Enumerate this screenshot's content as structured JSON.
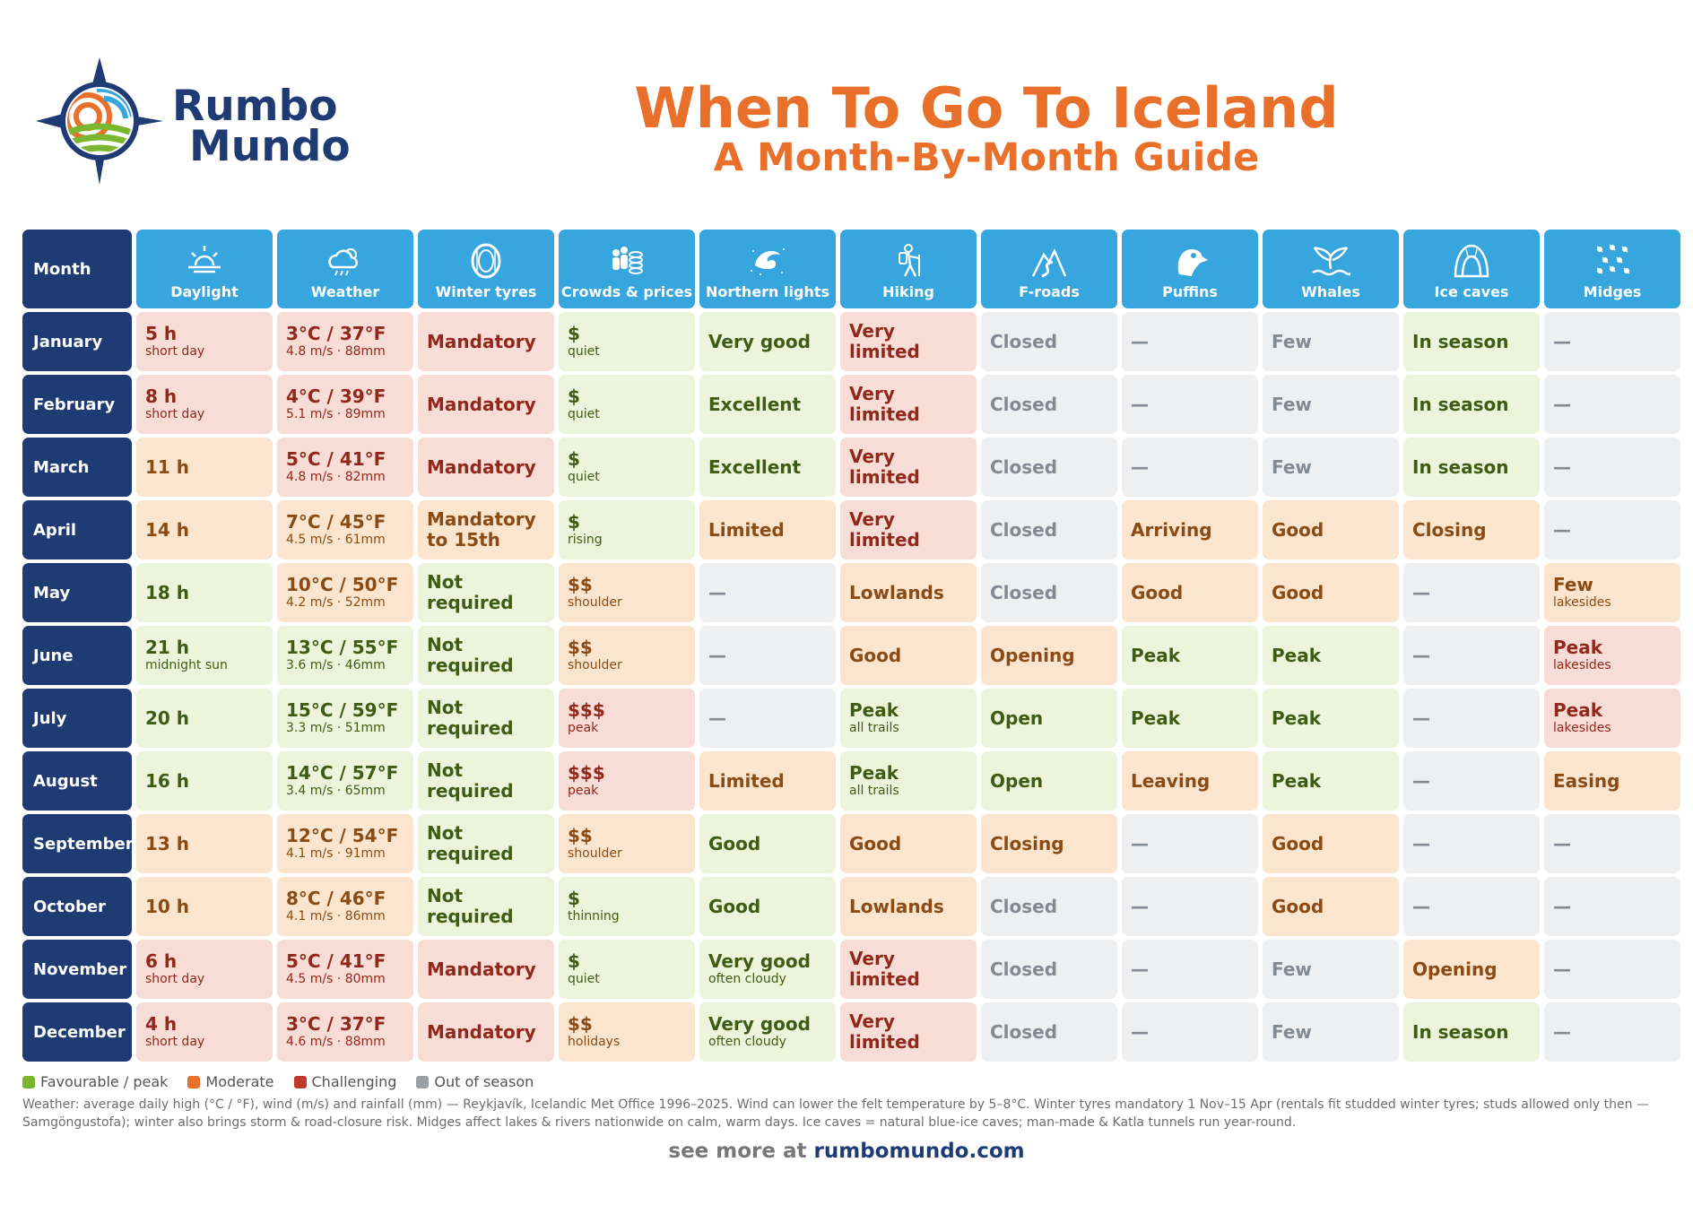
{
  "brand": {
    "line1": "Rumbo",
    "line2": "Mundo"
  },
  "title": {
    "line1": "When To Go To Iceland",
    "line2": "A Month-By-Month Guide"
  },
  "colors": {
    "favourable": "#7ab72f",
    "moderate": "#e8702a",
    "challenging": "#c0392b",
    "out": "#9aa0a6",
    "navy": "#1f3b73",
    "header_blue": "#37a6df"
  },
  "table": {
    "month_header": "Month",
    "columns": [
      {
        "label": "Daylight",
        "icon": "sunrise-icon"
      },
      {
        "label": "Weather",
        "icon": "rain-cloud-icon"
      },
      {
        "label": "Winter tyres",
        "icon": "tyre-icon"
      },
      {
        "label": "Crowds & prices",
        "icon": "crowd-coins-icon"
      },
      {
        "label": "Northern lights",
        "icon": "aurora-icon"
      },
      {
        "label": "Hiking",
        "icon": "hiker-icon"
      },
      {
        "label": "F-roads",
        "icon": "mountain-road-icon"
      },
      {
        "label": "Puffins",
        "icon": "puffin-icon"
      },
      {
        "label": "Whales",
        "icon": "whale-tail-icon"
      },
      {
        "label": "Ice caves",
        "icon": "ice-cave-icon"
      },
      {
        "label": "Midges",
        "icon": "midges-icon"
      }
    ],
    "rows": [
      {
        "month": "January",
        "cells": [
          {
            "main": "5 h",
            "sub": "short day",
            "status": "c"
          },
          {
            "main": "3°C / 37°F",
            "sub": "4.8 m/s · 88mm",
            "status": "c"
          },
          {
            "main": "Mandatory",
            "sub": "",
            "status": "c"
          },
          {
            "main": "$",
            "sub": "quiet",
            "status": "g"
          },
          {
            "main": "Very good",
            "sub": "",
            "status": "g"
          },
          {
            "main": "Very limited",
            "sub": "",
            "status": "c"
          },
          {
            "main": "Closed",
            "sub": "",
            "status": "o"
          },
          {
            "main": "—",
            "sub": "",
            "status": "o"
          },
          {
            "main": "Few",
            "sub": "",
            "status": "o"
          },
          {
            "main": "In season",
            "sub": "",
            "status": "g"
          },
          {
            "main": "—",
            "sub": "",
            "status": "o"
          }
        ]
      },
      {
        "month": "February",
        "cells": [
          {
            "main": "8 h",
            "sub": "short day",
            "status": "c"
          },
          {
            "main": "4°C / 39°F",
            "sub": "5.1 m/s · 89mm",
            "status": "c"
          },
          {
            "main": "Mandatory",
            "sub": "",
            "status": "c"
          },
          {
            "main": "$",
            "sub": "quiet",
            "status": "g"
          },
          {
            "main": "Excellent",
            "sub": "",
            "status": "g"
          },
          {
            "main": "Very limited",
            "sub": "",
            "status": "c"
          },
          {
            "main": "Closed",
            "sub": "",
            "status": "o"
          },
          {
            "main": "—",
            "sub": "",
            "status": "o"
          },
          {
            "main": "Few",
            "sub": "",
            "status": "o"
          },
          {
            "main": "In season",
            "sub": "",
            "status": "g"
          },
          {
            "main": "—",
            "sub": "",
            "status": "o"
          }
        ]
      },
      {
        "month": "March",
        "cells": [
          {
            "main": "11 h",
            "sub": "",
            "status": "m"
          },
          {
            "main": "5°C / 41°F",
            "sub": "4.8 m/s · 82mm",
            "status": "c"
          },
          {
            "main": "Mandatory",
            "sub": "",
            "status": "c"
          },
          {
            "main": "$",
            "sub": "quiet",
            "status": "g"
          },
          {
            "main": "Excellent",
            "sub": "",
            "status": "g"
          },
          {
            "main": "Very limited",
            "sub": "",
            "status": "c"
          },
          {
            "main": "Closed",
            "sub": "",
            "status": "o"
          },
          {
            "main": "—",
            "sub": "",
            "status": "o"
          },
          {
            "main": "Few",
            "sub": "",
            "status": "o"
          },
          {
            "main": "In season",
            "sub": "",
            "status": "g"
          },
          {
            "main": "—",
            "sub": "",
            "status": "o"
          }
        ]
      },
      {
        "month": "April",
        "cells": [
          {
            "main": "14 h",
            "sub": "",
            "status": "m"
          },
          {
            "main": "7°C / 45°F",
            "sub": "4.5 m/s · 61mm",
            "status": "m"
          },
          {
            "main": "Mandatory to 15th",
            "sub": "",
            "status": "m"
          },
          {
            "main": "$",
            "sub": "rising",
            "status": "g"
          },
          {
            "main": "Limited",
            "sub": "",
            "status": "m"
          },
          {
            "main": "Very limited",
            "sub": "",
            "status": "c"
          },
          {
            "main": "Closed",
            "sub": "",
            "status": "o"
          },
          {
            "main": "Arriving",
            "sub": "",
            "status": "m"
          },
          {
            "main": "Good",
            "sub": "",
            "status": "m"
          },
          {
            "main": "Closing",
            "sub": "",
            "status": "m"
          },
          {
            "main": "—",
            "sub": "",
            "status": "o"
          }
        ]
      },
      {
        "month": "May",
        "cells": [
          {
            "main": "18 h",
            "sub": "",
            "status": "g"
          },
          {
            "main": "10°C / 50°F",
            "sub": "4.2 m/s · 52mm",
            "status": "m"
          },
          {
            "main": "Not required",
            "sub": "",
            "status": "g"
          },
          {
            "main": "$$",
            "sub": "shoulder",
            "status": "m"
          },
          {
            "main": "—",
            "sub": "",
            "status": "o"
          },
          {
            "main": "Lowlands",
            "sub": "",
            "status": "m"
          },
          {
            "main": "Closed",
            "sub": "",
            "status": "o"
          },
          {
            "main": "Good",
            "sub": "",
            "status": "m"
          },
          {
            "main": "Good",
            "sub": "",
            "status": "m"
          },
          {
            "main": "—",
            "sub": "",
            "status": "o"
          },
          {
            "main": "Few",
            "sub": "lakesides",
            "status": "m"
          }
        ]
      },
      {
        "month": "June",
        "cells": [
          {
            "main": "21 h",
            "sub": "midnight sun",
            "status": "g"
          },
          {
            "main": "13°C / 55°F",
            "sub": "3.6 m/s · 46mm",
            "status": "g"
          },
          {
            "main": "Not required",
            "sub": "",
            "status": "g"
          },
          {
            "main": "$$",
            "sub": "shoulder",
            "status": "m"
          },
          {
            "main": "—",
            "sub": "",
            "status": "o"
          },
          {
            "main": "Good",
            "sub": "",
            "status": "m"
          },
          {
            "main": "Opening",
            "sub": "",
            "status": "m"
          },
          {
            "main": "Peak",
            "sub": "",
            "status": "g"
          },
          {
            "main": "Peak",
            "sub": "",
            "status": "g"
          },
          {
            "main": "—",
            "sub": "",
            "status": "o"
          },
          {
            "main": "Peak",
            "sub": "lakesides",
            "status": "c"
          }
        ]
      },
      {
        "month": "July",
        "cells": [
          {
            "main": "20 h",
            "sub": "",
            "status": "g"
          },
          {
            "main": "15°C / 59°F",
            "sub": "3.3 m/s · 51mm",
            "status": "g"
          },
          {
            "main": "Not required",
            "sub": "",
            "status": "g"
          },
          {
            "main": "$$$",
            "sub": "peak",
            "status": "c"
          },
          {
            "main": "—",
            "sub": "",
            "status": "o"
          },
          {
            "main": "Peak",
            "sub": "all trails",
            "status": "g"
          },
          {
            "main": "Open",
            "sub": "",
            "status": "g"
          },
          {
            "main": "Peak",
            "sub": "",
            "status": "g"
          },
          {
            "main": "Peak",
            "sub": "",
            "status": "g"
          },
          {
            "main": "—",
            "sub": "",
            "status": "o"
          },
          {
            "main": "Peak",
            "sub": "lakesides",
            "status": "c"
          }
        ]
      },
      {
        "month": "August",
        "cells": [
          {
            "main": "16 h",
            "sub": "",
            "status": "g"
          },
          {
            "main": "14°C / 57°F",
            "sub": "3.4 m/s · 65mm",
            "status": "g"
          },
          {
            "main": "Not required",
            "sub": "",
            "status": "g"
          },
          {
            "main": "$$$",
            "sub": "peak",
            "status": "c"
          },
          {
            "main": "Limited",
            "sub": "",
            "status": "m"
          },
          {
            "main": "Peak",
            "sub": "all trails",
            "status": "g"
          },
          {
            "main": "Open",
            "sub": "",
            "status": "g"
          },
          {
            "main": "Leaving",
            "sub": "",
            "status": "m"
          },
          {
            "main": "Peak",
            "sub": "",
            "status": "g"
          },
          {
            "main": "—",
            "sub": "",
            "status": "o"
          },
          {
            "main": "Easing",
            "sub": "",
            "status": "m"
          }
        ]
      },
      {
        "month": "September",
        "cells": [
          {
            "main": "13 h",
            "sub": "",
            "status": "m"
          },
          {
            "main": "12°C / 54°F",
            "sub": "4.1 m/s · 91mm",
            "status": "m"
          },
          {
            "main": "Not required",
            "sub": "",
            "status": "g"
          },
          {
            "main": "$$",
            "sub": "shoulder",
            "status": "m"
          },
          {
            "main": "Good",
            "sub": "",
            "status": "g"
          },
          {
            "main": "Good",
            "sub": "",
            "status": "m"
          },
          {
            "main": "Closing",
            "sub": "",
            "status": "m"
          },
          {
            "main": "—",
            "sub": "",
            "status": "o"
          },
          {
            "main": "Good",
            "sub": "",
            "status": "m"
          },
          {
            "main": "—",
            "sub": "",
            "status": "o"
          },
          {
            "main": "—",
            "sub": "",
            "status": "o"
          }
        ]
      },
      {
        "month": "October",
        "cells": [
          {
            "main": "10 h",
            "sub": "",
            "status": "m"
          },
          {
            "main": "8°C / 46°F",
            "sub": "4.1 m/s · 86mm",
            "status": "m"
          },
          {
            "main": "Not required",
            "sub": "",
            "status": "g"
          },
          {
            "main": "$",
            "sub": "thinning",
            "status": "g"
          },
          {
            "main": "Good",
            "sub": "",
            "status": "g"
          },
          {
            "main": "Lowlands",
            "sub": "",
            "status": "m"
          },
          {
            "main": "Closed",
            "sub": "",
            "status": "o"
          },
          {
            "main": "—",
            "sub": "",
            "status": "o"
          },
          {
            "main": "Good",
            "sub": "",
            "status": "m"
          },
          {
            "main": "—",
            "sub": "",
            "status": "o"
          },
          {
            "main": "—",
            "sub": "",
            "status": "o"
          }
        ]
      },
      {
        "month": "November",
        "cells": [
          {
            "main": "6 h",
            "sub": "short day",
            "status": "c"
          },
          {
            "main": "5°C / 41°F",
            "sub": "4.5 m/s · 80mm",
            "status": "c"
          },
          {
            "main": "Mandatory",
            "sub": "",
            "status": "c"
          },
          {
            "main": "$",
            "sub": "quiet",
            "status": "g"
          },
          {
            "main": "Very good",
            "sub": "often cloudy",
            "status": "g"
          },
          {
            "main": "Very limited",
            "sub": "",
            "status": "c"
          },
          {
            "main": "Closed",
            "sub": "",
            "status": "o"
          },
          {
            "main": "—",
            "sub": "",
            "status": "o"
          },
          {
            "main": "Few",
            "sub": "",
            "status": "o"
          },
          {
            "main": "Opening",
            "sub": "",
            "status": "m"
          },
          {
            "main": "—",
            "sub": "",
            "status": "o"
          }
        ]
      },
      {
        "month": "December",
        "cells": [
          {
            "main": "4 h",
            "sub": "short day",
            "status": "c"
          },
          {
            "main": "3°C / 37°F",
            "sub": "4.6 m/s · 88mm",
            "status": "c"
          },
          {
            "main": "Mandatory",
            "sub": "",
            "status": "c"
          },
          {
            "main": "$$",
            "sub": "holidays",
            "status": "m"
          },
          {
            "main": "Very good",
            "sub": "often cloudy",
            "status": "g"
          },
          {
            "main": "Very limited",
            "sub": "",
            "status": "c"
          },
          {
            "main": "Closed",
            "sub": "",
            "status": "o"
          },
          {
            "main": "—",
            "sub": "",
            "status": "o"
          },
          {
            "main": "Few",
            "sub": "",
            "status": "o"
          },
          {
            "main": "In season",
            "sub": "",
            "status": "g"
          },
          {
            "main": "—",
            "sub": "",
            "status": "o"
          }
        ]
      }
    ]
  },
  "legend": {
    "favourable": "Favourable / peak",
    "moderate": "Moderate",
    "challenging": "Challenging",
    "out": "Out of season"
  },
  "notes": "Weather: average daily high (°C / °F), wind (m/s) and rainfall (mm) — Reykjavík, Icelandic Met Office 1996–2025. Wind can lower the felt temperature by 5–8°C. Winter tyres mandatory 1 Nov–15 Apr (rentals fit studded winter tyres; studs allowed only then — Samgöngustofa); winter also brings storm & road-closure risk. Midges affect lakes & rivers nationwide on calm, warm days. Ice caves = natural blue-ice caves; man-made & Katla tunnels run year-round.",
  "footer": {
    "prefix": "see more at",
    "link": "rumbomundo.com"
  }
}
